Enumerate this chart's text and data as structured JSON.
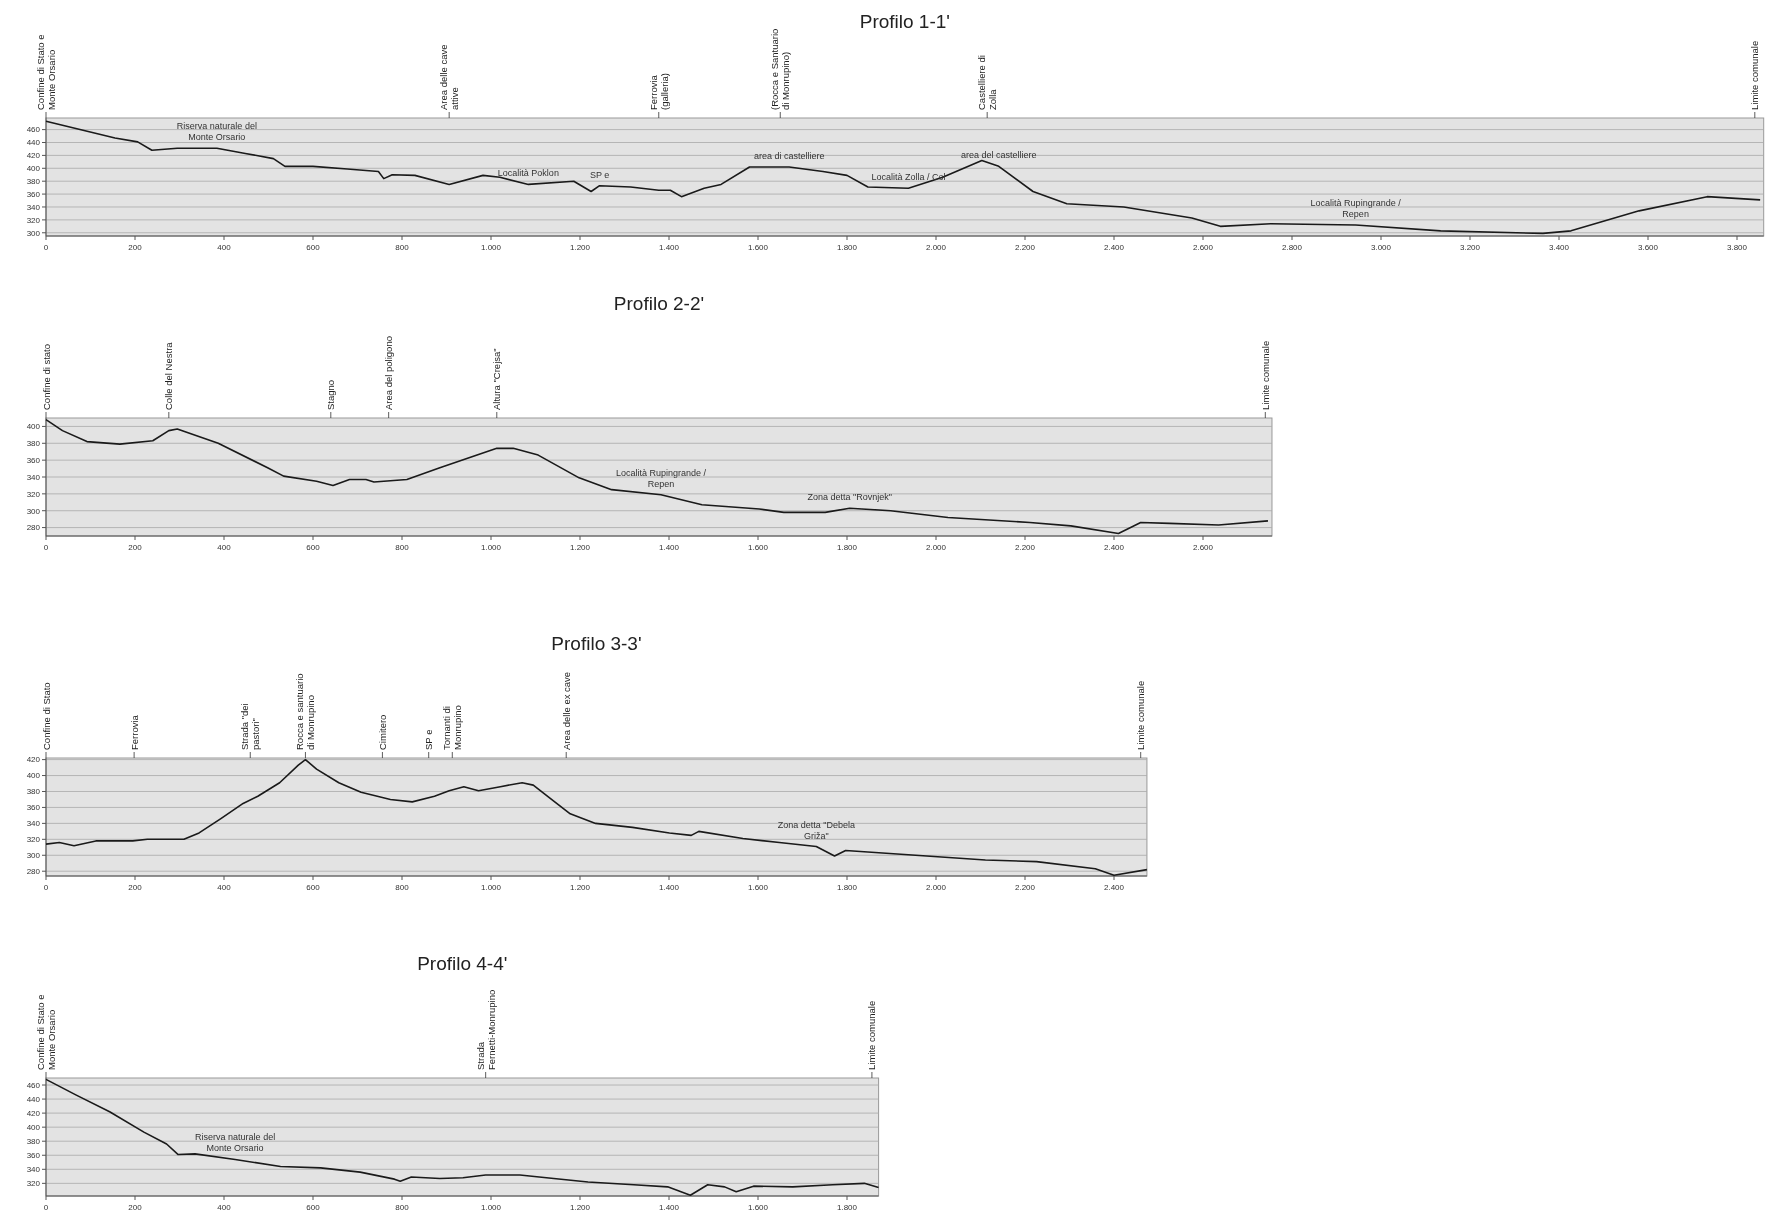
{
  "chart_data": [
    {
      "type": "line",
      "title": "Profilo 1-1'",
      "xlim": [
        0,
        3860
      ],
      "ylim": [
        295,
        478
      ],
      "grid": "y",
      "marker": "none",
      "xticks": [
        0,
        200,
        400,
        600,
        800,
        {
          "value": 1000,
          "label": "1.000"
        },
        {
          "value": 1200,
          "label": "1.200"
        },
        {
          "value": 1400,
          "label": "1.400"
        },
        {
          "value": 1600,
          "label": "1.600"
        },
        {
          "value": 1800,
          "label": "1.800"
        },
        {
          "value": 2000,
          "label": "2.000"
        },
        {
          "value": 2200,
          "label": "2.200"
        },
        {
          "value": 2400,
          "label": "2.400"
        },
        {
          "value": 2600,
          "label": "2.600"
        },
        {
          "value": 2800,
          "label": "2.800"
        },
        {
          "value": 3000,
          "label": "3.000"
        },
        {
          "value": 3200,
          "label": "3.200"
        },
        {
          "value": 3400,
          "label": "3.400"
        },
        {
          "value": 3600,
          "label": "3.600"
        },
        {
          "value": 3800,
          "label": "3.800"
        }
      ],
      "yticks": [
        300,
        320,
        340,
        360,
        380,
        400,
        420,
        440,
        460
      ],
      "series": [
        {
          "color": "#1a1a1a",
          "x": [
            0,
            155,
            206,
            238,
            295,
            384,
            448,
            511,
            537,
            600,
            677,
            747,
            759,
            778,
            829,
            906,
            982,
            1020,
            1084,
            1186,
            1225,
            1244,
            1314,
            1377,
            1403,
            1428,
            1479,
            1517,
            1581,
            1670,
            1746,
            1800,
            1847,
            1938,
            2015,
            2103,
            2141,
            2218,
            2294,
            2422,
            2575,
            2639,
            2752,
            2943,
            3134,
            3364,
            3427,
            3580,
            3733,
            3852
          ],
          "values": [
            473,
            447,
            441,
            428,
            431,
            431,
            423,
            415,
            403,
            403,
            399,
            395,
            384,
            390,
            389,
            375,
            389,
            386,
            375,
            380,
            364,
            373,
            371,
            366,
            366,
            356,
            369,
            375,
            402,
            402,
            395,
            389,
            371,
            369,
            386,
            412,
            403,
            364,
            345,
            340,
            323,
            310,
            314,
            312,
            303,
            299,
            303,
            334,
            356,
            351
          ]
        }
      ],
      "ref_lines": [
        {
          "axis": "x",
          "value": 0,
          "label": "Confine di Stato e Monte Orsario"
        },
        {
          "axis": "x",
          "value": 906,
          "label": "Area delle cave attive"
        },
        {
          "axis": "x",
          "value": 1377,
          "label": "Ferrovia (galleria)"
        },
        {
          "axis": "x",
          "value": 1650,
          "label": "(Rocca e Santuario di Monrupino)"
        },
        {
          "axis": "x",
          "value": 2115,
          "label": "Castelliere di Zolla"
        },
        {
          "axis": "x",
          "value": 3840,
          "label": "Limite comunale"
        }
      ],
      "annotations": [
        {
          "text": "Località Poklon",
          "x": 1084,
          "y": 375
        },
        {
          "text": "SP e",
          "x": 1244,
          "y": 373
        },
        {
          "text": "area di castelliere",
          "x": 1670,
          "y": 402
        },
        {
          "text": "Località Zolla / Col",
          "x": 1938,
          "y": 369
        },
        {
          "text": "area del castelliere",
          "x": 2141,
          "y": 403
        },
        {
          "text": "Località Rupingrande / Repen",
          "x": 2943,
          "y": 312
        },
        {
          "text": "Riserva naturale del Monte Orsario",
          "x": 384,
          "y": 431
        }
      ]
    },
    {
      "type": "line",
      "title": "Profilo 2-2'",
      "xlim": [
        0,
        2755
      ],
      "ylim": [
        270,
        410
      ],
      "grid": "y",
      "marker": "none",
      "xticks": [
        0,
        200,
        400,
        600,
        800,
        {
          "value": 1000,
          "label": "1.000"
        },
        {
          "value": 1200,
          "label": "1.200"
        },
        {
          "value": 1400,
          "label": "1.400"
        },
        {
          "value": 1600,
          "label": "1.600"
        },
        {
          "value": 1800,
          "label": "1.800"
        },
        {
          "value": 2000,
          "label": "2.000"
        },
        {
          "value": 2200,
          "label": "2.200"
        },
        {
          "value": 2400,
          "label": "2.400"
        },
        {
          "value": 2600,
          "label": "2.600"
        }
      ],
      "yticks": [
        280,
        300,
        320,
        340,
        360,
        380,
        400
      ],
      "series": [
        {
          "color": "#1a1a1a",
          "x": [
            0,
            37,
            92,
            166,
            240,
            276,
            295,
            387,
            498,
            534,
            608,
            645,
            682,
            719,
            737,
            811,
            885,
            1013,
            1050,
            1106,
            1198,
            1271,
            1382,
            1474,
            1603,
            1658,
            1751,
            1806,
            1898,
            2027,
            2211,
            2303,
            2410,
            2460,
            2525,
            2635,
            2746
          ],
          "values": [
            408,
            395,
            382,
            379,
            383,
            395,
            397,
            380,
            351,
            341,
            335,
            330,
            337,
            337,
            334,
            337,
            351,
            374,
            374,
            366,
            339,
            325,
            319,
            307,
            302,
            298,
            298,
            303,
            300,
            292,
            286,
            282,
            273,
            286,
            285,
            283,
            288
          ]
        }
      ],
      "ref_lines": [
        {
          "axis": "x",
          "value": 0,
          "label": "Confine di stato"
        },
        {
          "axis": "x",
          "value": 276,
          "label": "Colle del Nestra"
        },
        {
          "axis": "x",
          "value": 640,
          "label": "Stagno"
        },
        {
          "axis": "x",
          "value": 770,
          "label": "Area del poligono"
        },
        {
          "axis": "x",
          "value": 1013,
          "label": "Altura \"Crejsa\""
        },
        {
          "axis": "x",
          "value": 2740,
          "label": "Limite comunale"
        }
      ],
      "annotations": [
        {
          "text": "Località Rupingrande / Repen",
          "x": 1382,
          "y": 319
        },
        {
          "text": "Zona detta \"Rovnjek\"",
          "x": 1806,
          "y": 303
        }
      ]
    },
    {
      "type": "line",
      "title": "Profilo 3-3'",
      "xlim": [
        0,
        2474
      ],
      "ylim": [
        274,
        422
      ],
      "grid": "y",
      "marker": "none",
      "xticks": [
        0,
        200,
        400,
        600,
        800,
        {
          "value": 1000,
          "label": "1.000"
        },
        {
          "value": 1200,
          "label": "1.200"
        },
        {
          "value": 1400,
          "label": "1.400"
        },
        {
          "value": 1600,
          "label": "1.600"
        },
        {
          "value": 1800,
          "label": "1.800"
        },
        {
          "value": 2000,
          "label": "2.000"
        },
        {
          "value": 2200,
          "label": "2.200"
        },
        {
          "value": 2400,
          "label": "2.400"
        }
      ],
      "yticks": [
        280,
        300,
        320,
        340,
        360,
        380,
        400,
        420
      ],
      "series": [
        {
          "color": "#1a1a1a",
          "x": [
            0,
            30,
            63,
            112,
            195,
            228,
            310,
            344,
            393,
            443,
            476,
            525,
            567,
            583,
            608,
            658,
            708,
            774,
            823,
            873,
            906,
            939,
            972,
            1021,
            1070,
            1095,
            1136,
            1178,
            1235,
            1318,
            1401,
            1450,
            1467,
            1566,
            1648,
            1731,
            1772,
            1797,
            1979,
            2111,
            2226,
            2358,
            2400,
            2474
          ],
          "values": [
            314,
            316,
            312,
            318,
            318,
            320,
            320,
            328,
            346,
            365,
            374,
            391,
            413,
            420,
            408,
            391,
            379,
            370,
            367,
            374,
            381,
            386,
            381,
            386,
            391,
            388,
            370,
            352,
            340,
            335,
            328,
            325,
            330,
            321,
            316,
            311,
            299,
            306,
            299,
            294,
            292,
            283,
            275,
            282
          ]
        }
      ],
      "ref_lines": [
        {
          "axis": "x",
          "value": 0,
          "label": "Confine di Stato"
        },
        {
          "axis": "x",
          "value": 198,
          "label": "Ferrovia"
        },
        {
          "axis": "x",
          "value": 459,
          "label": "Strada \"dei pastori\""
        },
        {
          "axis": "x",
          "value": 583,
          "label": "Rocca e santuario di Monrupino"
        },
        {
          "axis": "x",
          "value": 756,
          "label": "Cimitero"
        },
        {
          "axis": "x",
          "value": 860,
          "label": "SP e"
        },
        {
          "axis": "x",
          "value": 913,
          "label": "Tornanti di Monrupino"
        },
        {
          "axis": "x",
          "value": 1169,
          "label": "Area delle ex cave"
        },
        {
          "axis": "x",
          "value": 2460,
          "label": "Limite comunale"
        }
      ],
      "annotations": [
        {
          "text": "Zona detta \"Debela Griža\"",
          "x": 1731,
          "y": 311
        }
      ]
    },
    {
      "type": "line",
      "title": "Profilo 4-4'",
      "xlim": [
        0,
        1871
      ],
      "ylim": [
        302,
        470
      ],
      "grid": "y",
      "marker": "none",
      "xticks": [
        0,
        200,
        400,
        600,
        800,
        {
          "value": 1000,
          "label": "1.000"
        },
        {
          "value": 1200,
          "label": "1.200"
        },
        {
          "value": 1400,
          "label": "1.400"
        },
        {
          "value": 1600,
          "label": "1.600"
        },
        {
          "value": 1800,
          "label": "1.800"
        }
      ],
      "yticks": [
        320,
        340,
        360,
        380,
        400,
        420,
        440,
        460
      ],
      "series": [
        {
          "color": "#1a1a1a",
          "x": [
            0,
            67,
            143,
            220,
            271,
            297,
            335,
            425,
            527,
            617,
            706,
            783,
            796,
            821,
            885,
            937,
            988,
            1065,
            1141,
            1218,
            1321,
            1397,
            1448,
            1487,
            1525,
            1551,
            1590,
            1678,
            1768,
            1839,
            1871
          ],
          "values": [
            468,
            446,
            422,
            393,
            376,
            361,
            362,
            354,
            344,
            342,
            336,
            326,
            323,
            329,
            327,
            328,
            332,
            332,
            327,
            322,
            318,
            315,
            303,
            318,
            315,
            308,
            316,
            315,
            318,
            320,
            314
          ]
        }
      ],
      "ref_lines": [
        {
          "axis": "x",
          "value": 0,
          "label": "Confine di Stato e Monte Orsario"
        },
        {
          "axis": "x",
          "value": 988,
          "label": "Strada Fernetti-Monrupino"
        },
        {
          "axis": "x",
          "value": 1856,
          "label": "Limite comunale"
        }
      ],
      "annotations": [
        {
          "text": "Riserva naturale del Monte Orsario",
          "x": 425,
          "y": 354
        }
      ]
    }
  ]
}
